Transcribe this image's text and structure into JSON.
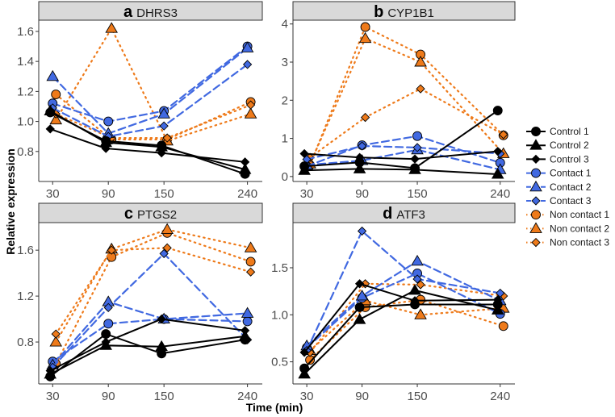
{
  "chart_data": {
    "type": "line",
    "xlabel": "Time (min)",
    "ylabel": "Relative expression",
    "x": [
      30,
      90,
      150,
      240
    ],
    "x_tick_labels": [
      "30",
      "90",
      "150",
      "240"
    ],
    "xlim": [
      15,
      256
    ],
    "colors": {
      "control": "#000000",
      "contact": "#4169E1",
      "noncontact": "#EE7A1A"
    },
    "legend": {
      "placement": "right",
      "entries": [
        {
          "name": "Control 1",
          "group": "control",
          "shape": "circle",
          "line": "solid"
        },
        {
          "name": "Control 2",
          "group": "control",
          "shape": "triangle",
          "line": "solid"
        },
        {
          "name": "Control 3",
          "group": "control",
          "shape": "diamond",
          "line": "solid"
        },
        {
          "name": "Contact 1",
          "group": "contact",
          "shape": "circle",
          "line": "dashed"
        },
        {
          "name": "Contact 2",
          "group": "contact",
          "shape": "triangle",
          "line": "dashed"
        },
        {
          "name": "Contact 3",
          "group": "contact",
          "shape": "diamond",
          "line": "dashed"
        },
        {
          "name": "Non contact 1",
          "group": "noncontact",
          "shape": "circle",
          "line": "dotted"
        },
        {
          "name": "Non contact 2",
          "group": "noncontact",
          "shape": "triangle",
          "line": "dotted"
        },
        {
          "name": "Non contact 3",
          "group": "noncontact",
          "shape": "diamond",
          "line": "dotted"
        }
      ]
    },
    "panels": [
      {
        "letter": "a",
        "gene": "DHRS3",
        "ylim": [
          0.6,
          1.675
        ],
        "yticks": [
          0.8,
          1.0,
          1.2,
          1.4,
          1.6
        ],
        "ytick_labels": [
          "0.8",
          "1.0",
          "1.2",
          "1.4",
          "1.6"
        ],
        "series": [
          {
            "name": "Control 1",
            "values": [
              1.06,
              0.87,
              0.84,
              0.65
            ]
          },
          {
            "name": "Control 2",
            "values": [
              1.07,
              0.86,
              0.83,
              0.68
            ]
          },
          {
            "name": "Control 3",
            "values": [
              0.95,
              0.82,
              0.79,
              0.73
            ]
          },
          {
            "name": "Contact 1",
            "values": [
              1.12,
              1.0,
              1.07,
              1.5
            ]
          },
          {
            "name": "Contact 2",
            "values": [
              1.3,
              0.92,
              1.05,
              1.49
            ]
          },
          {
            "name": "Contact 3",
            "values": [
              1.09,
              0.9,
              0.97,
              1.38
            ]
          },
          {
            "name": "Non contact 1",
            "values": [
              1.18,
              0.88,
              0.88,
              1.13
            ]
          },
          {
            "name": "Non contact 2",
            "values": [
              1.01,
              1.62,
              0.87,
              1.05
            ]
          },
          {
            "name": "Non contact 3",
            "values": [
              1.05,
              0.89,
              0.89,
              1.11
            ]
          }
        ]
      },
      {
        "letter": "b",
        "gene": "CYP1B1",
        "ylim": [
          -0.13,
          4.1
        ],
        "yticks": [
          0,
          1,
          2,
          3,
          4
        ],
        "ytick_labels": [
          "0",
          "1",
          "2",
          "3",
          "4"
        ],
        "series": [
          {
            "name": "Control 1",
            "values": [
              0.27,
              0.37,
              0.22,
              1.73
            ]
          },
          {
            "name": "Control 2",
            "values": [
              0.16,
              0.2,
              0.18,
              0.06
            ]
          },
          {
            "name": "Control 3",
            "values": [
              0.6,
              0.5,
              0.46,
              0.66
            ]
          },
          {
            "name": "Contact 1",
            "values": [
              0.27,
              0.82,
              1.06,
              0.36
            ]
          },
          {
            "name": "Contact 2",
            "values": [
              0.3,
              0.42,
              0.7,
              0.18
            ]
          },
          {
            "name": "Contact 3",
            "values": [
              0.45,
              0.8,
              0.76,
              0.6
            ]
          },
          {
            "name": "Non contact 1",
            "values": [
              0.3,
              3.92,
              3.2,
              1.08
            ]
          },
          {
            "name": "Non contact 2",
            "values": [
              0.33,
              3.62,
              3.0,
              0.6
            ]
          },
          {
            "name": "Non contact 3",
            "values": [
              0.5,
              1.55,
              2.3,
              1.1
            ]
          }
        ]
      },
      {
        "letter": "c",
        "gene": "PTGS2",
        "ylim": [
          0.435,
          1.84
        ],
        "yticks": [
          0.8,
          1.2,
          1.6
        ],
        "ytick_labels": [
          "0.8",
          "1.2",
          "1.6"
        ],
        "series": [
          {
            "name": "Control 1",
            "values": [
              0.5,
              0.87,
              0.7,
              0.82
            ]
          },
          {
            "name": "Control 2",
            "values": [
              0.52,
              0.77,
              0.76,
              0.85
            ]
          },
          {
            "name": "Control 3",
            "values": [
              0.55,
              0.8,
              1.0,
              0.9
            ]
          },
          {
            "name": "Contact 1",
            "values": [
              0.63,
              0.96,
              1.0,
              0.98
            ]
          },
          {
            "name": "Contact 2",
            "values": [
              0.6,
              1.15,
              1.0,
              1.05
            ]
          },
          {
            "name": "Contact 3",
            "values": [
              0.58,
              1.1,
              1.57,
              0.82
            ]
          },
          {
            "name": "Non contact 1",
            "values": [
              0.61,
              1.54,
              1.75,
              1.5
            ]
          },
          {
            "name": "Non contact 2",
            "values": [
              0.8,
              1.61,
              1.78,
              1.62
            ]
          },
          {
            "name": "Non contact 3",
            "values": [
              0.87,
              1.6,
              1.62,
              1.41
            ]
          }
        ]
      },
      {
        "letter": "d",
        "gene": "ATF3",
        "ylim": [
          0.265,
          1.98
        ],
        "yticks": [
          0.5,
          1.0,
          1.5
        ],
        "ytick_labels": [
          "0.5",
          "1.0",
          "1.5"
        ],
        "series": [
          {
            "name": "Control 1",
            "values": [
              0.43,
              1.08,
              1.11,
              1.11
            ]
          },
          {
            "name": "Control 2",
            "values": [
              0.37,
              0.95,
              1.26,
              1.05
            ]
          },
          {
            "name": "Control 3",
            "values": [
              0.6,
              1.33,
              1.15,
              1.16
            ]
          },
          {
            "name": "Contact 1",
            "values": [
              0.65,
              1.18,
              1.44,
              1.01
            ]
          },
          {
            "name": "Contact 2",
            "values": [
              0.67,
              1.2,
              1.57,
              1.15
            ]
          },
          {
            "name": "Contact 3",
            "values": [
              0.62,
              1.89,
              1.38,
              1.23
            ]
          },
          {
            "name": "Non contact 1",
            "values": [
              0.52,
              1.08,
              1.16,
              0.88
            ]
          },
          {
            "name": "Non contact 2",
            "values": [
              0.62,
              1.15,
              1.0,
              1.07
            ]
          },
          {
            "name": "Non contact 3",
            "values": [
              0.6,
              1.33,
              1.32,
              1.2
            ]
          }
        ]
      }
    ]
  }
}
